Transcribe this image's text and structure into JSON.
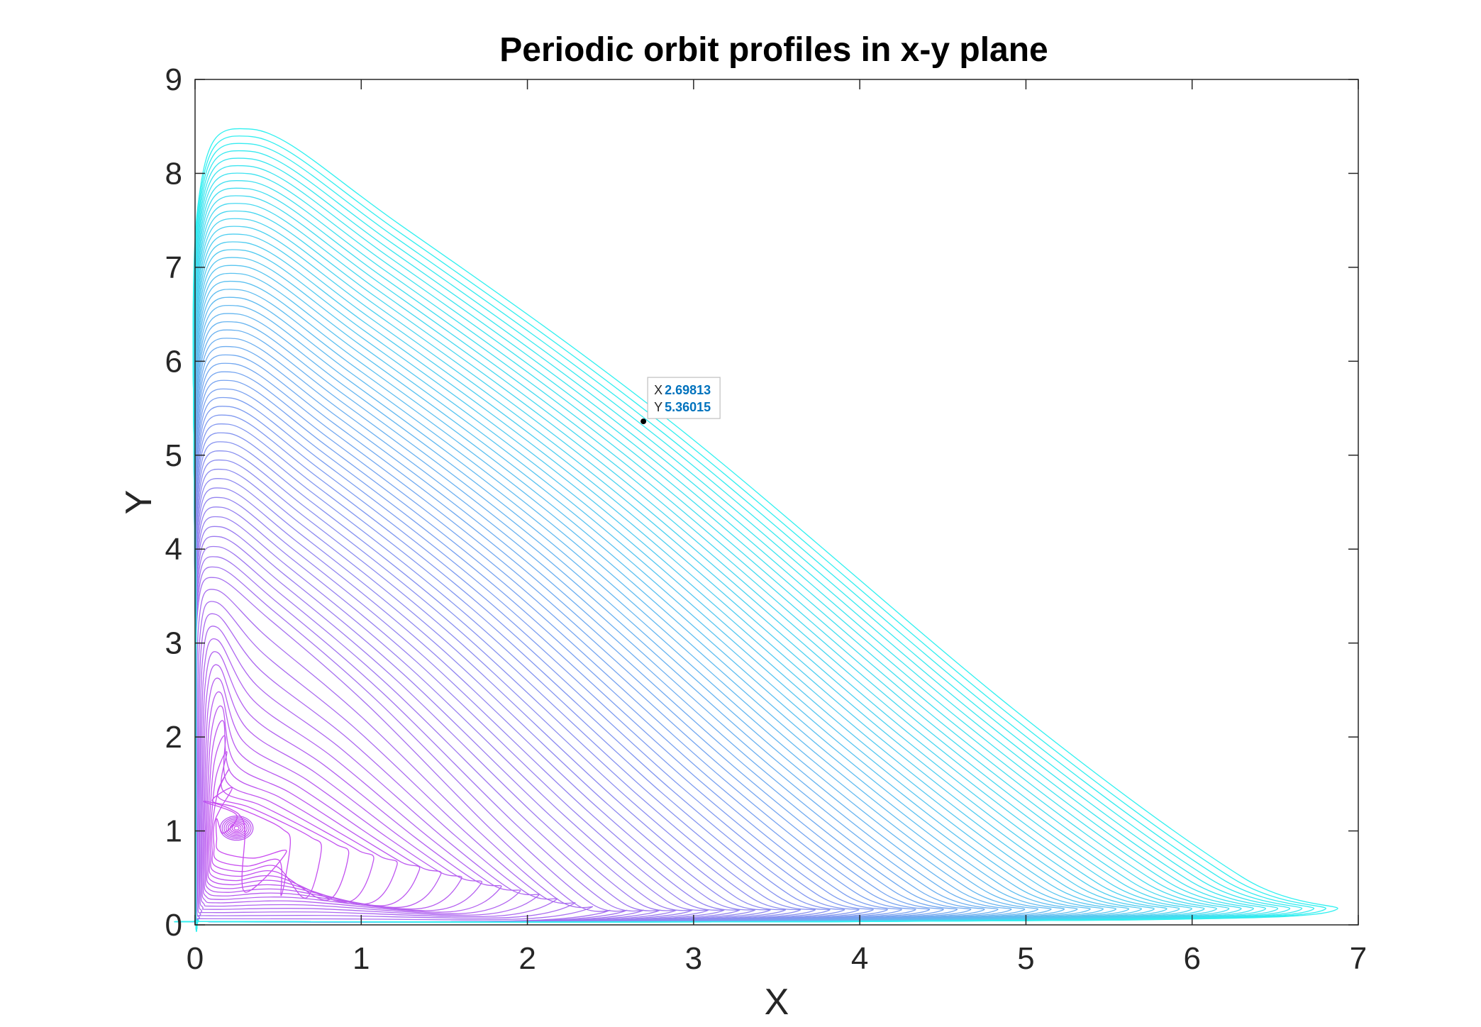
{
  "chart_data": {
    "type": "line",
    "title": "Periodic orbit profiles in x-y plane",
    "xlabel": "X",
    "ylabel": "Y",
    "xlim": [
      0,
      7
    ],
    "ylim": [
      0,
      9
    ],
    "xticks": [
      "0",
      "1",
      "2",
      "3",
      "4",
      "5",
      "6",
      "7"
    ],
    "yticks": [
      "0",
      "1",
      "2",
      "3",
      "4",
      "5",
      "6",
      "7",
      "8",
      "9"
    ],
    "grid": false,
    "legend": "none",
    "equilibrium": {
      "x": 0.25,
      "y": 1.03
    },
    "orbit_family": {
      "count": 70,
      "max_x_range": [
        0.3,
        6.85
      ],
      "max_y_range": [
        1.3,
        8.47
      ],
      "min_y": 0.05,
      "color_inner": "#c94af0",
      "color_outer": "#30f0f0"
    },
    "datatip": {
      "x_label": "X",
      "y_label": "Y",
      "x_text": "2.69813",
      "y_text": "5.36015",
      "x": 2.69813,
      "y": 5.36015
    }
  }
}
